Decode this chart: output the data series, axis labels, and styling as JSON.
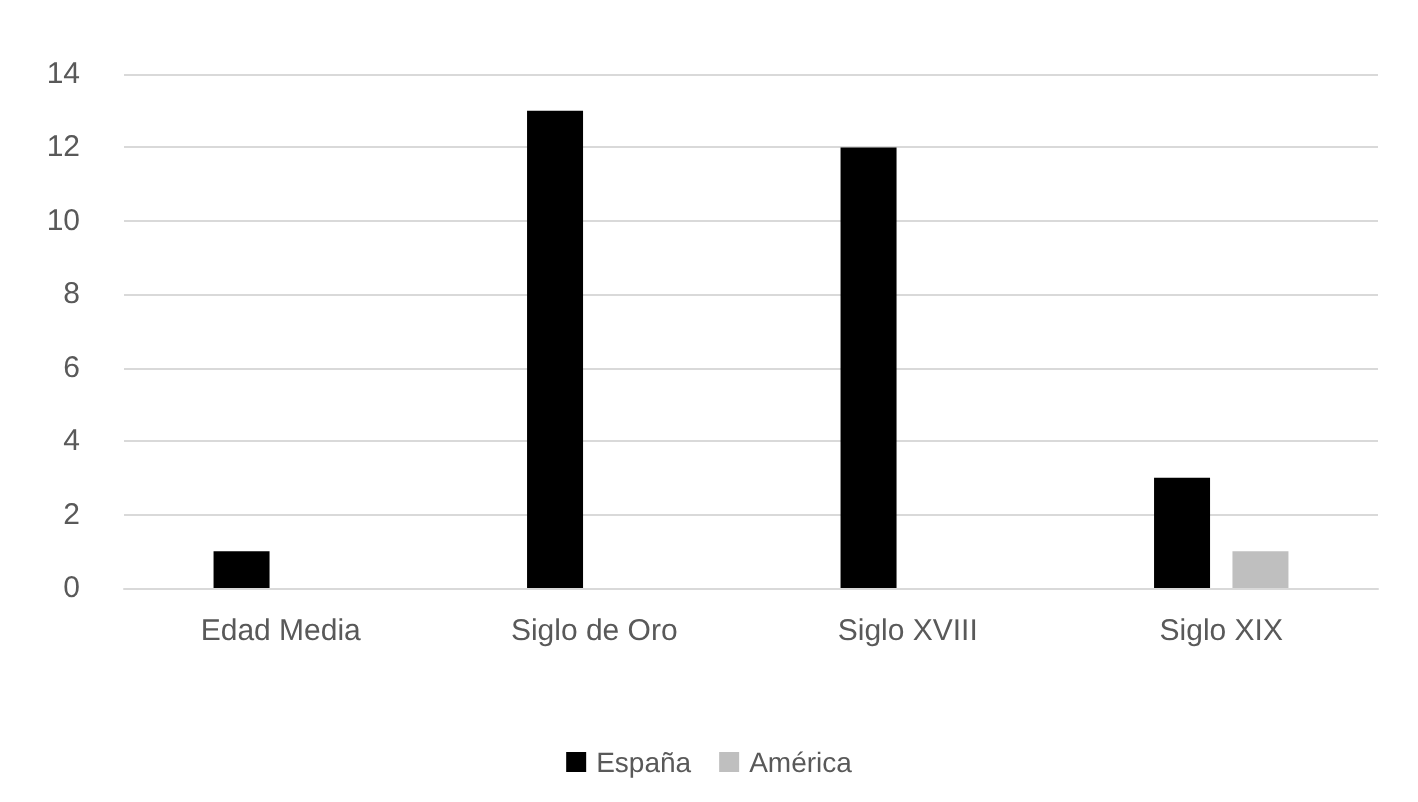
{
  "chart_data": {
    "type": "bar",
    "categories": [
      "Edad Media",
      "Siglo de Oro",
      "Siglo XVIII",
      "Siglo XIX"
    ],
    "series": [
      {
        "name": "España",
        "color": "#000000",
        "values": [
          1,
          13,
          12,
          3
        ]
      },
      {
        "name": "América",
        "color": "#bfbfbf",
        "values": [
          0,
          0,
          0,
          1
        ]
      }
    ],
    "ylim": [
      0,
      14
    ],
    "yticks": [
      0,
      2,
      4,
      6,
      8,
      10,
      12,
      14
    ],
    "grid": "y",
    "legend": "bottom"
  }
}
